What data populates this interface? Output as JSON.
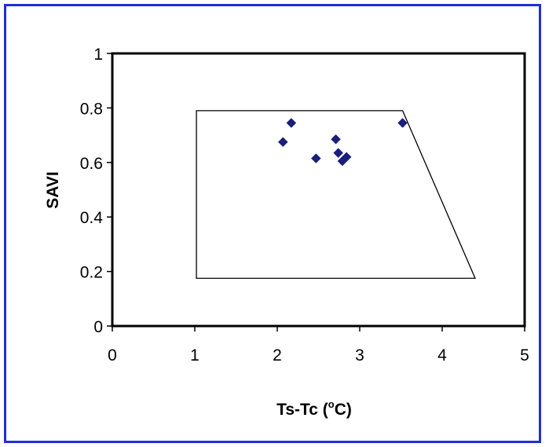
{
  "chart_data": {
    "type": "scatter",
    "xlabel_main": "Ts-Tc (",
    "xlabel_sup": "o",
    "xlabel_end": "C)",
    "ylabel": "SAVI",
    "xlim": [
      0,
      5
    ],
    "ylim": [
      0,
      1
    ],
    "x_ticks": [
      "0",
      "1",
      "2",
      "3",
      "4",
      "5"
    ],
    "y_ticks": [
      "0",
      "0.2",
      "0.4",
      "0.6",
      "0.8",
      "1"
    ],
    "grid": false,
    "marker_color": "#1a1f7a",
    "boundary_polygon": [
      [
        1.02,
        0.79
      ],
      [
        3.52,
        0.79
      ],
      [
        4.4,
        0.175
      ],
      [
        1.02,
        0.175
      ]
    ],
    "points": [
      {
        "x": 2.07,
        "y": 0.675
      },
      {
        "x": 2.17,
        "y": 0.745
      },
      {
        "x": 2.47,
        "y": 0.615
      },
      {
        "x": 2.71,
        "y": 0.685
      },
      {
        "x": 2.74,
        "y": 0.635
      },
      {
        "x": 2.79,
        "y": 0.605
      },
      {
        "x": 2.84,
        "y": 0.62
      },
      {
        "x": 3.52,
        "y": 0.745
      }
    ]
  }
}
